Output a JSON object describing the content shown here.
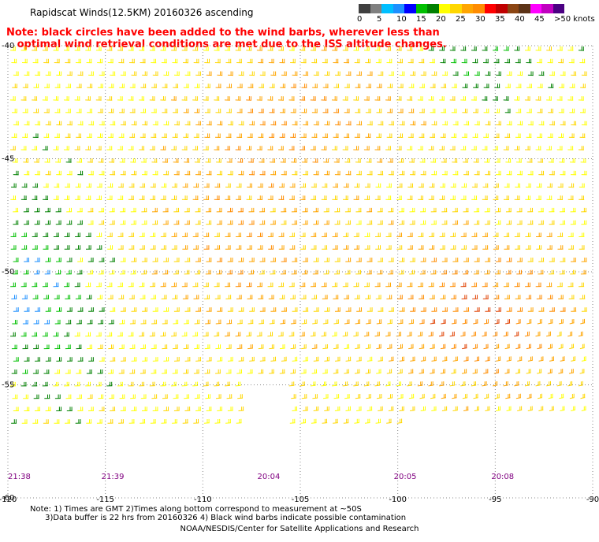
{
  "title": "Rapidscat Winds(12.5KM) 20160326 ascending",
  "note": {
    "line1": "Note: black circles have been added to the wind barbs, wherever less than",
    "line2": "optimal wind retrieval conditions are met due to the ISS altitude changes."
  },
  "legend": {
    "unit": "knots",
    "colors": [
      "#404040",
      "#808080",
      "#00bfff",
      "#1e90ff",
      "#0000ff",
      "#00c000",
      "#008000",
      "#ffff00",
      "#ffd700",
      "#ffa500",
      "#ff8c00",
      "#ff0000",
      "#c00000",
      "#8b4513",
      "#5c3317",
      "#ff00ff",
      "#c000c0",
      "#4b0082"
    ],
    "ticks": [
      "0",
      "5",
      "10",
      "15",
      "20",
      "25",
      "30",
      "35",
      "40",
      "45",
      ">50 knots"
    ]
  },
  "axes": {
    "lat_labels": [
      "-40",
      "-45",
      "-50",
      "-55",
      "-60"
    ],
    "lon_labels": [
      "-120",
      "-115",
      "-110",
      "-105",
      "-100",
      "-95",
      "-90"
    ]
  },
  "times": [
    {
      "label": "21:38",
      "lon": -120
    },
    {
      "label": "21:39",
      "lon": -115
    },
    {
      "label": "20:04",
      "lon": -107
    },
    {
      "label": "20:05",
      "lon": -100
    },
    {
      "label": "20:08",
      "lon": -95
    }
  ],
  "map_data": {
    "region": {
      "lon_range": [
        -120,
        -90
      ],
      "lat_range": [
        -60,
        -40
      ]
    },
    "grid": {
      "lon_step": 5,
      "lat_step": 5
    },
    "swath_gap": {
      "lat_range": [
        -57.5,
        -40
      ],
      "description": ""
    }
  },
  "notes_bottom": {
    "line1": "Note: 1) Times are GMT 2)Times along bottom correspond to measurement at ~50S",
    "line2": "3)Data buffer is 22 hrs from 20160326 4) Black wind barbs indicate possible contamination"
  },
  "credit": "NOAA/NESDIS/Center for Satellite Applications and Research"
}
